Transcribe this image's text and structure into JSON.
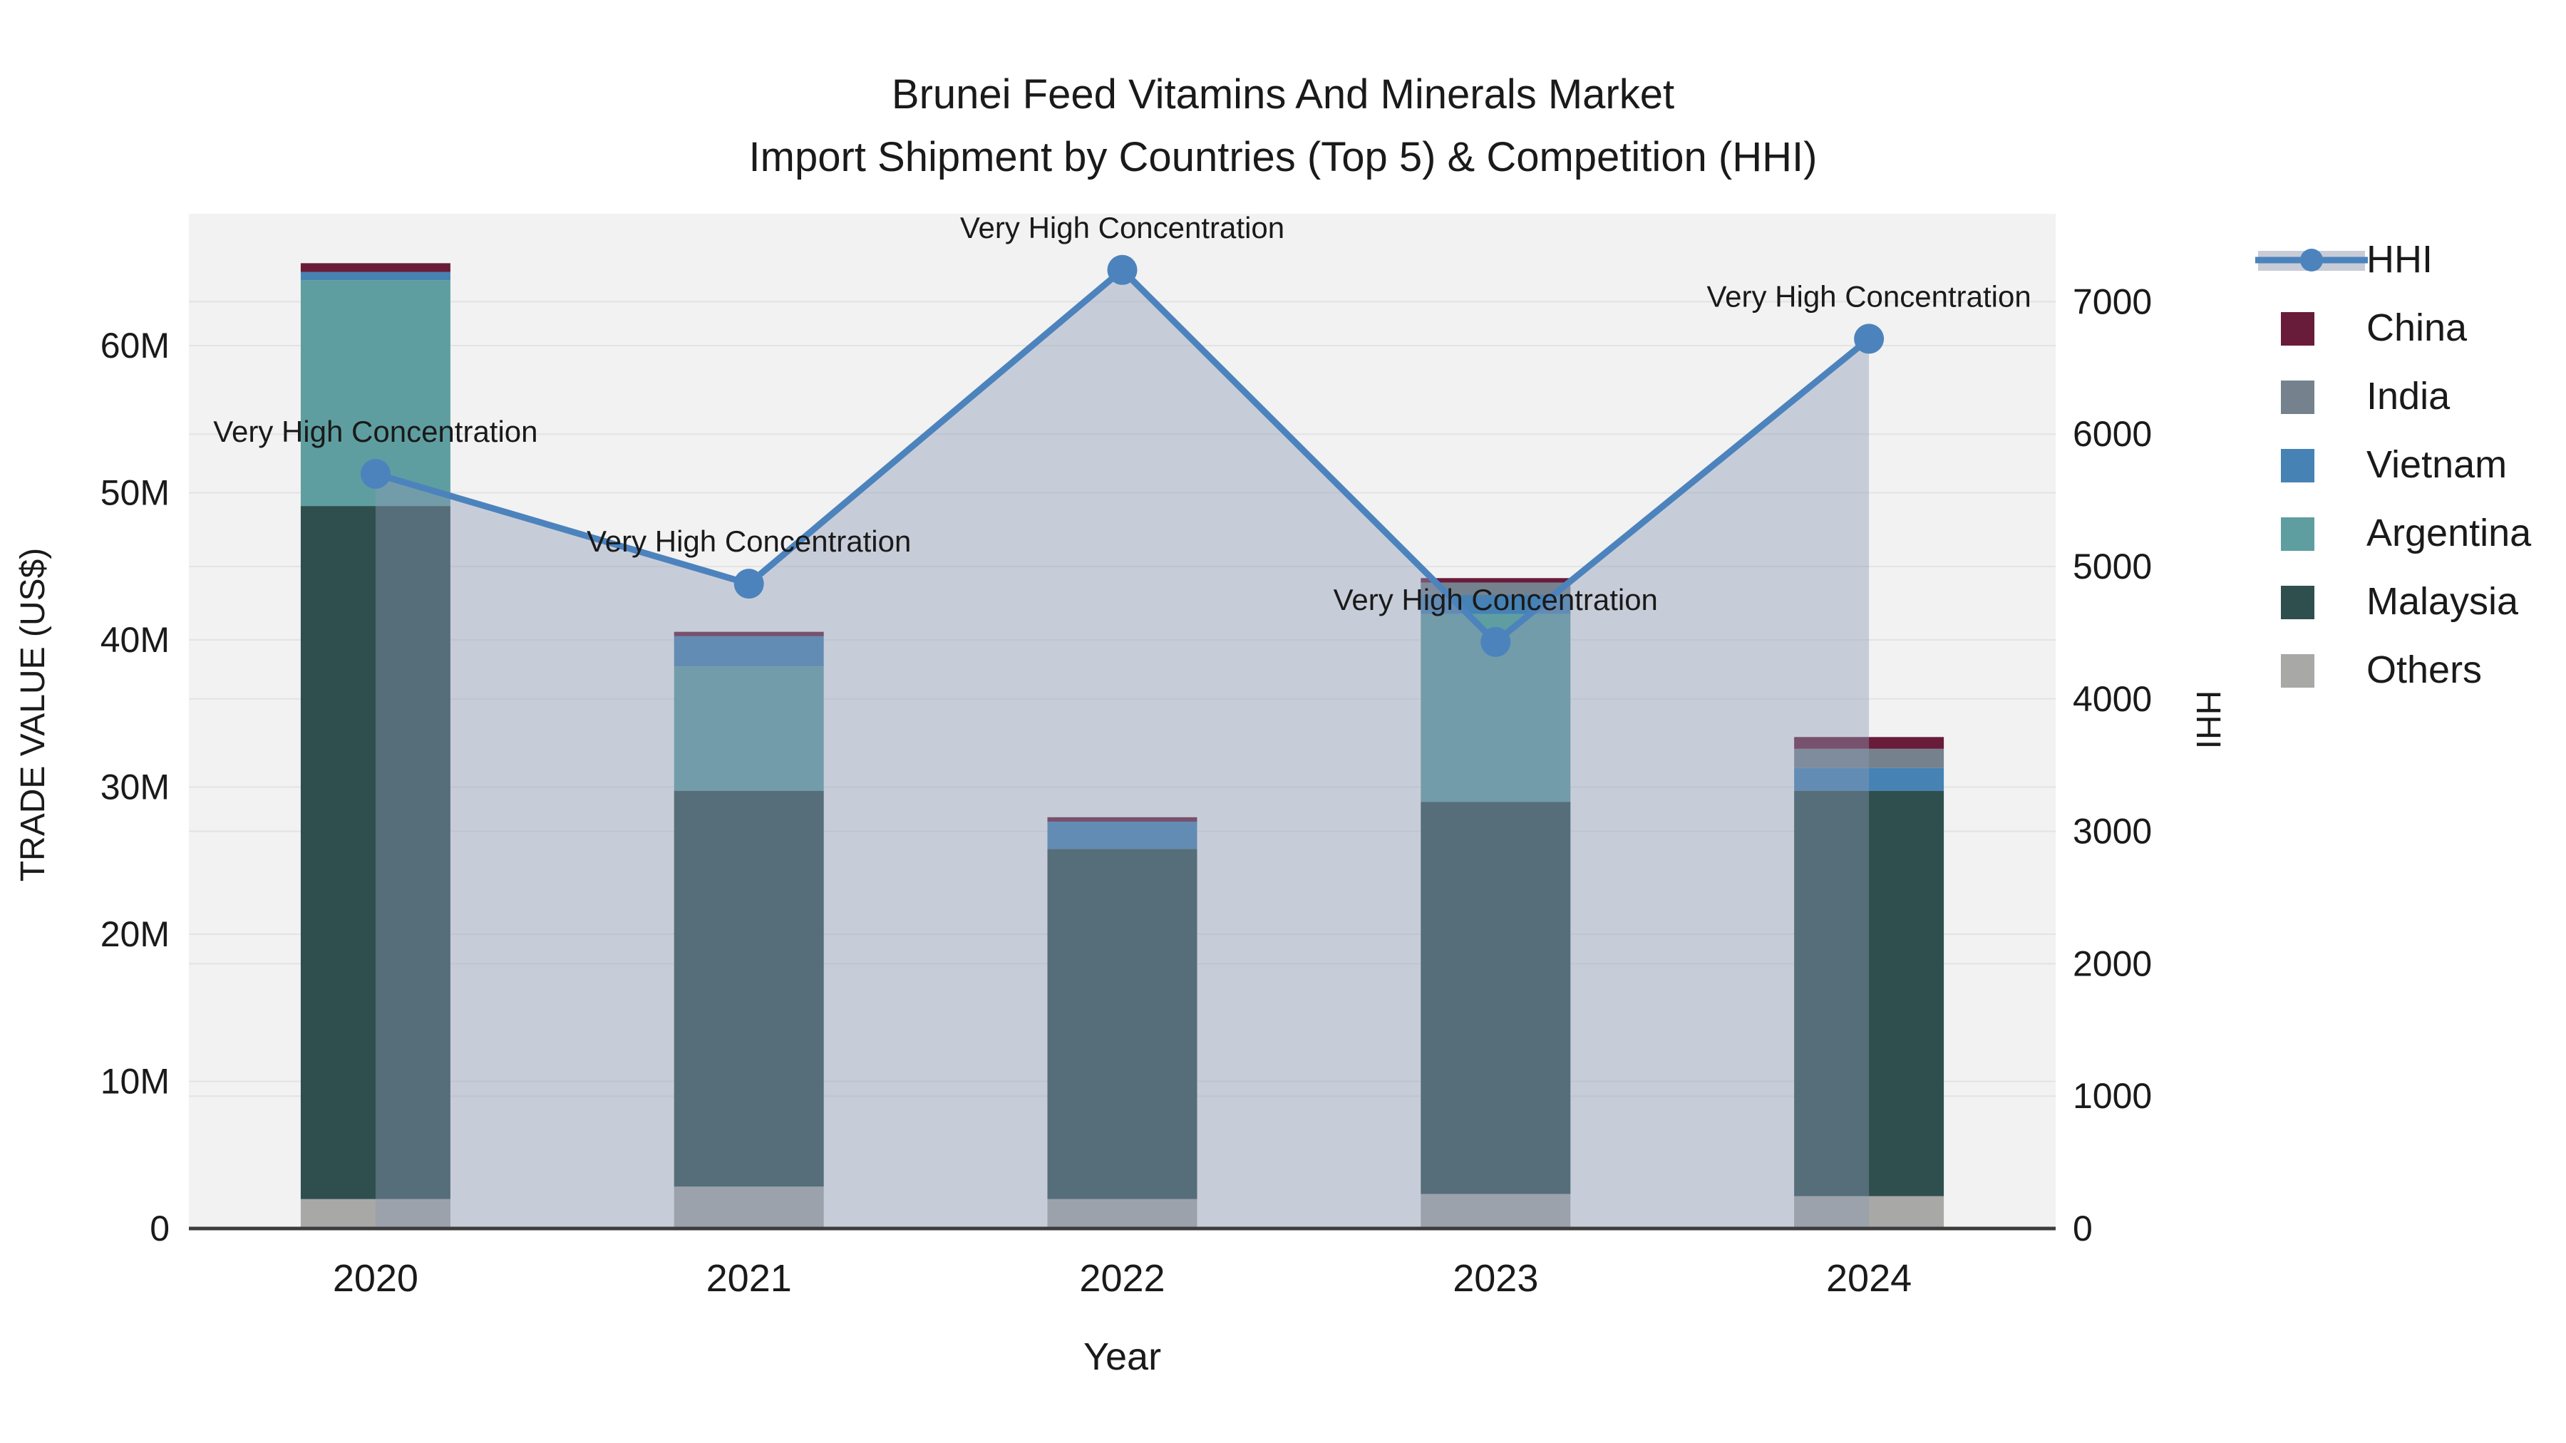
{
  "title": {
    "line1": "Brunei Feed Vitamins And Minerals Market",
    "line2": "Import Shipment by Countries (Top 5) & Competition (HHI)"
  },
  "axes": {
    "x": {
      "title": "Year",
      "categories": [
        "2020",
        "2021",
        "2022",
        "2023",
        "2024"
      ]
    },
    "y_left": {
      "title": "TRADE VALUE (US$)",
      "ticks": [
        {
          "label": "0",
          "value": 0
        },
        {
          "label": "10M",
          "value": 10
        },
        {
          "label": "20M",
          "value": 20
        },
        {
          "label": "30M",
          "value": 30
        },
        {
          "label": "40M",
          "value": 40
        },
        {
          "label": "50M",
          "value": 50
        },
        {
          "label": "60M",
          "value": 60
        }
      ]
    },
    "y_right": {
      "title": "HHI",
      "ticks": [
        {
          "label": "0",
          "value": 0
        },
        {
          "label": "1000",
          "value": 1000
        },
        {
          "label": "2000",
          "value": 2000
        },
        {
          "label": "3000",
          "value": 3000
        },
        {
          "label": "4000",
          "value": 4000
        },
        {
          "label": "5000",
          "value": 5000
        },
        {
          "label": "6000",
          "value": 6000
        },
        {
          "label": "7000",
          "value": 7000
        }
      ]
    }
  },
  "legend": {
    "items": [
      {
        "label": "HHI",
        "type": "line",
        "color": "#4c83bd"
      },
      {
        "label": "China",
        "type": "bar",
        "color": "#681c3a"
      },
      {
        "label": "India",
        "type": "bar",
        "color": "#75828e"
      },
      {
        "label": "Vietnam",
        "type": "bar",
        "color": "#4682b4"
      },
      {
        "label": "Argentina",
        "type": "bar",
        "color": "#5f9ea0"
      },
      {
        "label": "Malaysia",
        "type": "bar",
        "color": "#2f4f4f"
      },
      {
        "label": "Others",
        "type": "bar",
        "color": "#a8a8a6"
      }
    ]
  },
  "chart_data": {
    "type": "bar",
    "subtype": "stacked-bars-with-line-overlay",
    "categories": [
      "2020",
      "2021",
      "2022",
      "2023",
      "2024"
    ],
    "bar_value_unit": "million US$",
    "series": [
      {
        "name": "Others",
        "color": "#a8a8a6",
        "values": [
          2.0,
          2.85,
          2.0,
          2.35,
          2.2
        ]
      },
      {
        "name": "Malaysia",
        "color": "#2f4f4f",
        "values": [
          47.1,
          26.9,
          23.8,
          26.65,
          27.55
        ]
      },
      {
        "name": "Argentina",
        "color": "#5f9ea0",
        "values": [
          15.35,
          8.45,
          0,
          12.75,
          0
        ]
      },
      {
        "name": "Vietnam",
        "color": "#4682b4",
        "values": [
          0.55,
          2.05,
          1.85,
          1.3,
          1.55
        ]
      },
      {
        "name": "India",
        "color": "#75828e",
        "values": [
          0,
          0,
          0,
          0.85,
          1.3
        ]
      },
      {
        "name": "China",
        "color": "#681c3a",
        "values": [
          0.6,
          0.3,
          0.3,
          0.3,
          0.8
        ]
      }
    ],
    "bar_totals": [
      65.6,
      40.55,
      27.95,
      44.2,
      33.4
    ],
    "hhi": {
      "name": "HHI",
      "color": "#4c83bd",
      "area_fill": "rgba(141,155,180,0.42)",
      "values": [
        5700,
        4870,
        7240,
        4430,
        6720
      ],
      "annotation_text": "Very High Concentration"
    },
    "title": "Brunei Feed Vitamins And Minerals Market — Import Shipment by Countries (Top 5) & Competition (HHI)",
    "xlabel": "Year",
    "ylabel_left": "TRADE VALUE (US$)",
    "ylabel_right": "HHI",
    "ylim_left": [
      0,
      69
    ],
    "ylim_right": [
      0,
      7660
    ],
    "grid": true,
    "legend_position": "right",
    "plot_bg": "#f2f2f2",
    "grid_color": "#e3e3e3",
    "axisline_color": "#3c3c3c"
  }
}
